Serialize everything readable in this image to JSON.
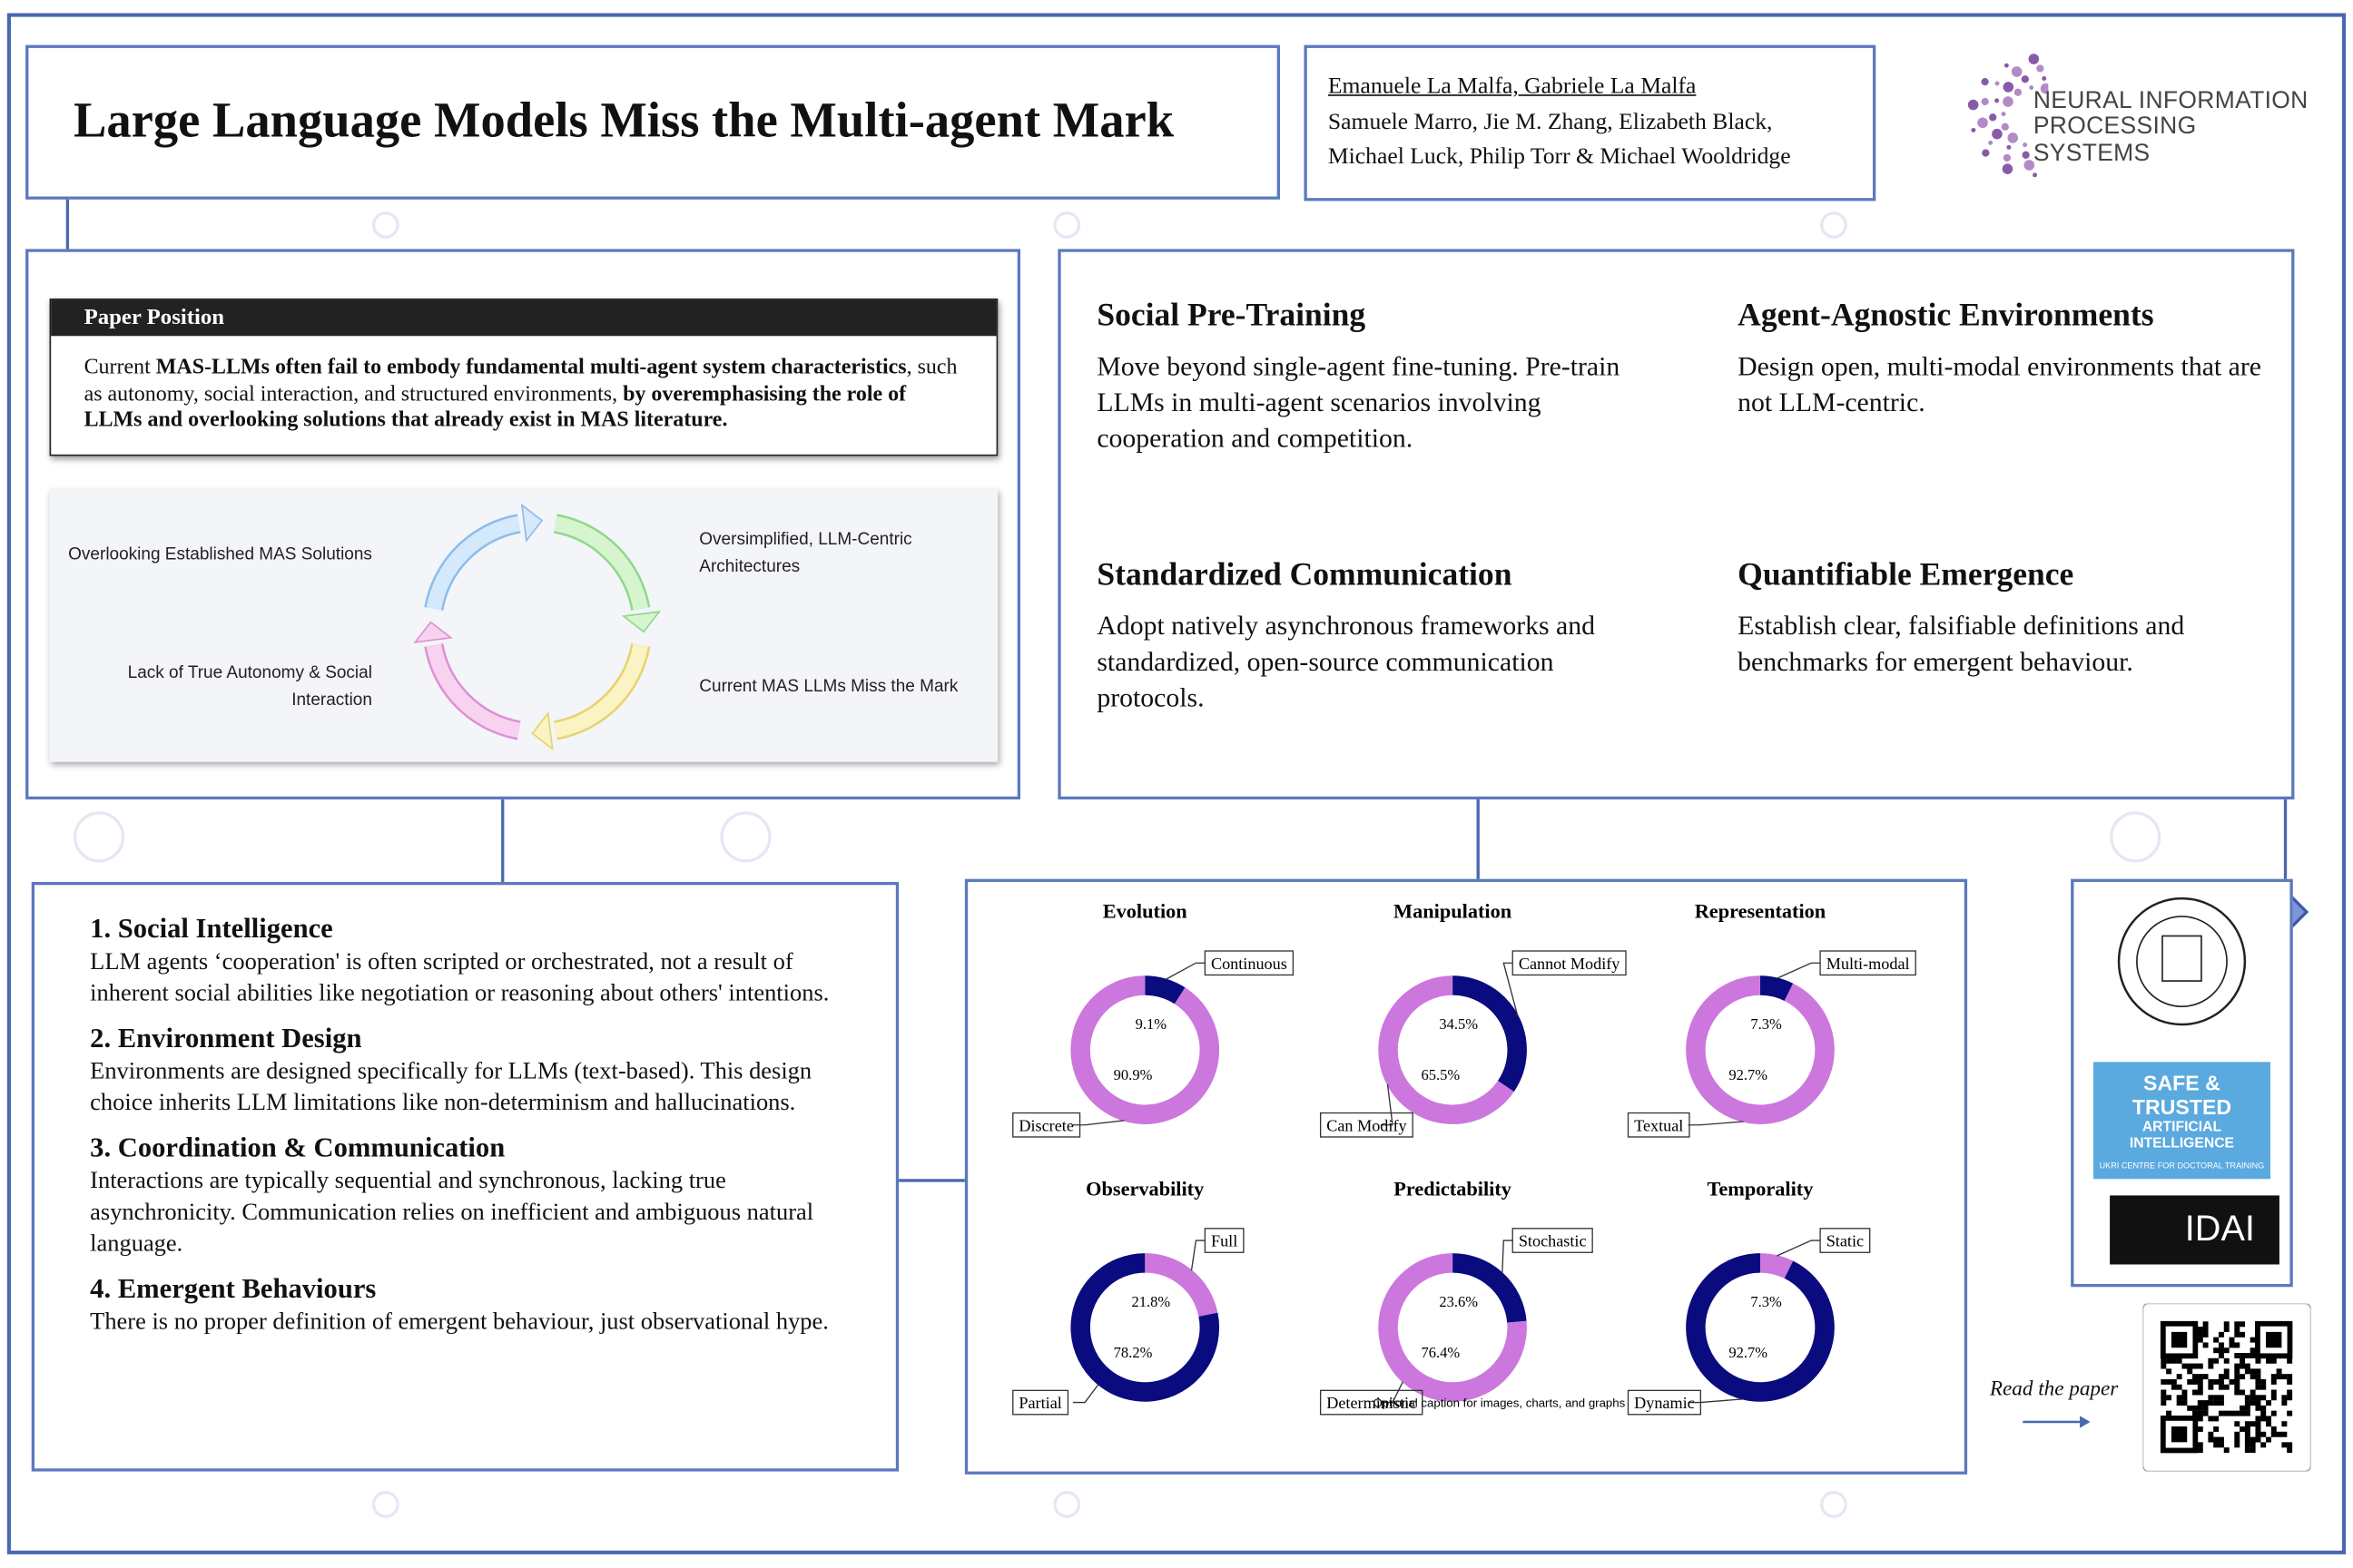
{
  "header": {
    "title": "Large Language Models Miss the Multi-agent Mark",
    "authors": [
      "Emanuele La Malfa, Gabriele La Malfa",
      "Samuele Marro, Jie M. Zhang, Elizabeth Black,",
      "Michael Luck, Philip Torr & Michael Wooldridge"
    ],
    "logo": [
      "NEURAL INFORMATION",
      "PROCESSING SYSTEMS"
    ]
  },
  "position": {
    "heading": "Paper Position",
    "segments": [
      {
        "text": "Current "
      },
      {
        "text": "MAS-LLMs often fail to embody fundamental multi-agent system characteristics",
        "bold": true
      },
      {
        "text": ", such as autonomy, social interaction, and structured environments, "
      },
      {
        "text": "by overemphasising the role of LLMs and overlooking solutions that already exist in MAS literature.",
        "bold": true
      }
    ]
  },
  "cycle": [
    "Oversimplified, LLM-Centric Architectures",
    "Current MAS LLMs Miss the Mark",
    "Lack of True Autonomy & Social Interaction",
    "Overlooking Established MAS Solutions"
  ],
  "proposals": [
    {
      "heading": "Social Pre-Training",
      "text": "Move beyond single-agent fine-tuning. Pre-train LLMs in multi-agent scenarios involving cooperation and competition."
    },
    {
      "heading": "Agent-Agnostic Environments",
      "text": "Design open, multi-modal environments that are not LLM-centric."
    },
    {
      "heading": "Standardized Communication",
      "text": "Adopt natively asynchronous frameworks and standardized, open-source communication protocols."
    },
    {
      "heading": "Quantifiable Emergence",
      "text": "Establish clear, falsifiable definitions and benchmarks for emergent behaviour."
    }
  ],
  "problems": [
    {
      "heading": "1. Social Intelligence",
      "text": "LLM agents ‘cooperation' is often scripted or orchestrated, not a result of inherent social abilities like negotiation or reasoning about others' intentions."
    },
    {
      "heading": "2. Environment Design",
      "text": "Environments are designed specifically for LLMs (text-based). This design choice inherits LLM limitations like non-determinism and hallucinations."
    },
    {
      "heading": "3. Coordination & Communication",
      "text": "Interactions are typically sequential and synchronous, lacking true asynchronicity. Communication relies on inefficient and ambiguous natural language."
    },
    {
      "heading": "4. Emergent Behaviours",
      "text": "There is no proper definition of emergent behaviour, just observational hype."
    }
  ],
  "charts": [
    {
      "type": "donut",
      "title": "Evolution",
      "categories": [
        "Continuous",
        "Discrete"
      ],
      "values": [
        9.1,
        90.9
      ],
      "value_labels": [
        "9.1%",
        "90.9%"
      ],
      "colors": [
        "#0b0b80",
        "#cc77dd"
      ]
    },
    {
      "type": "donut",
      "title": "Manipulation",
      "categories": [
        "Cannot Modify",
        "Can Modify"
      ],
      "values": [
        34.5,
        65.5
      ],
      "value_labels": [
        "34.5%",
        "65.5%"
      ],
      "colors": [
        "#0b0b80",
        "#cc77dd"
      ]
    },
    {
      "type": "donut",
      "title": "Representation",
      "categories": [
        "Multi-modal",
        "Textual"
      ],
      "values": [
        7.3,
        92.7
      ],
      "value_labels": [
        "7.3%",
        "92.7%"
      ],
      "colors": [
        "#0b0b80",
        "#cc77dd"
      ]
    },
    {
      "type": "donut",
      "title": "Observability",
      "categories": [
        "Full",
        "Partial"
      ],
      "values": [
        21.8,
        78.2
      ],
      "value_labels": [
        "21.8%",
        "78.2%"
      ],
      "colors": [
        "#cc77dd",
        "#0b0b80"
      ]
    },
    {
      "type": "donut",
      "title": "Predictability",
      "categories": [
        "Stochastic",
        "Deterministic"
      ],
      "values": [
        23.6,
        76.4
      ],
      "value_labels": [
        "23.6%",
        "76.4%"
      ],
      "colors": [
        "#0b0b80",
        "#cc77dd"
      ]
    },
    {
      "type": "donut",
      "title": "Temporality",
      "categories": [
        "Static",
        "Dynamic"
      ],
      "values": [
        7.3,
        92.7
      ],
      "value_labels": [
        "7.3%",
        "92.7%"
      ],
      "colors": [
        "#cc77dd",
        "#0b0b80"
      ]
    }
  ],
  "caption": "Optional caption for images, charts, and graphs",
  "sidebar": {
    "safe": [
      "SAFE & TRUSTED",
      "ARTIFICIAL INTELLIGENCE",
      "UKRI CENTRE FOR DOCTORAL TRAINING"
    ],
    "idai": "IDAI",
    "read": "Read the paper"
  }
}
